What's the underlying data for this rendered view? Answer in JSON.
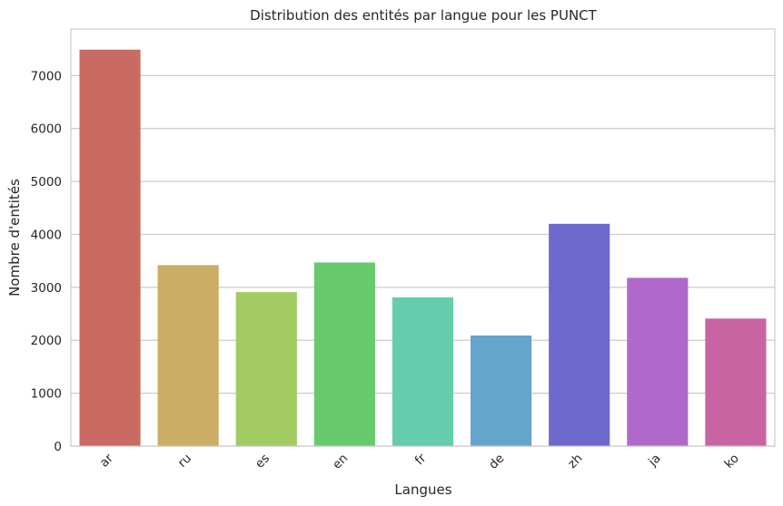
{
  "chart_data": {
    "type": "bar",
    "title": "Distribution des entités par langue pour les PUNCT",
    "xlabel": "Langues",
    "ylabel": "Nombre d'entités",
    "categories": [
      "ar",
      "ru",
      "es",
      "en",
      "fr",
      "de",
      "zh",
      "ja",
      "ko"
    ],
    "values": [
      7490,
      3420,
      2910,
      3470,
      2810,
      2090,
      4200,
      3180,
      2410
    ],
    "colors": [
      "#c96b63",
      "#cbae63",
      "#a2cb63",
      "#67cb6d",
      "#67cbad",
      "#65a4cb",
      "#6e69cd",
      "#b069cb",
      "#c964a2"
    ],
    "ylim": [
      0,
      7880
    ],
    "yticks": [
      0,
      1000,
      2000,
      3000,
      4000,
      5000,
      6000,
      7000
    ],
    "grid": true,
    "legend": "none"
  }
}
